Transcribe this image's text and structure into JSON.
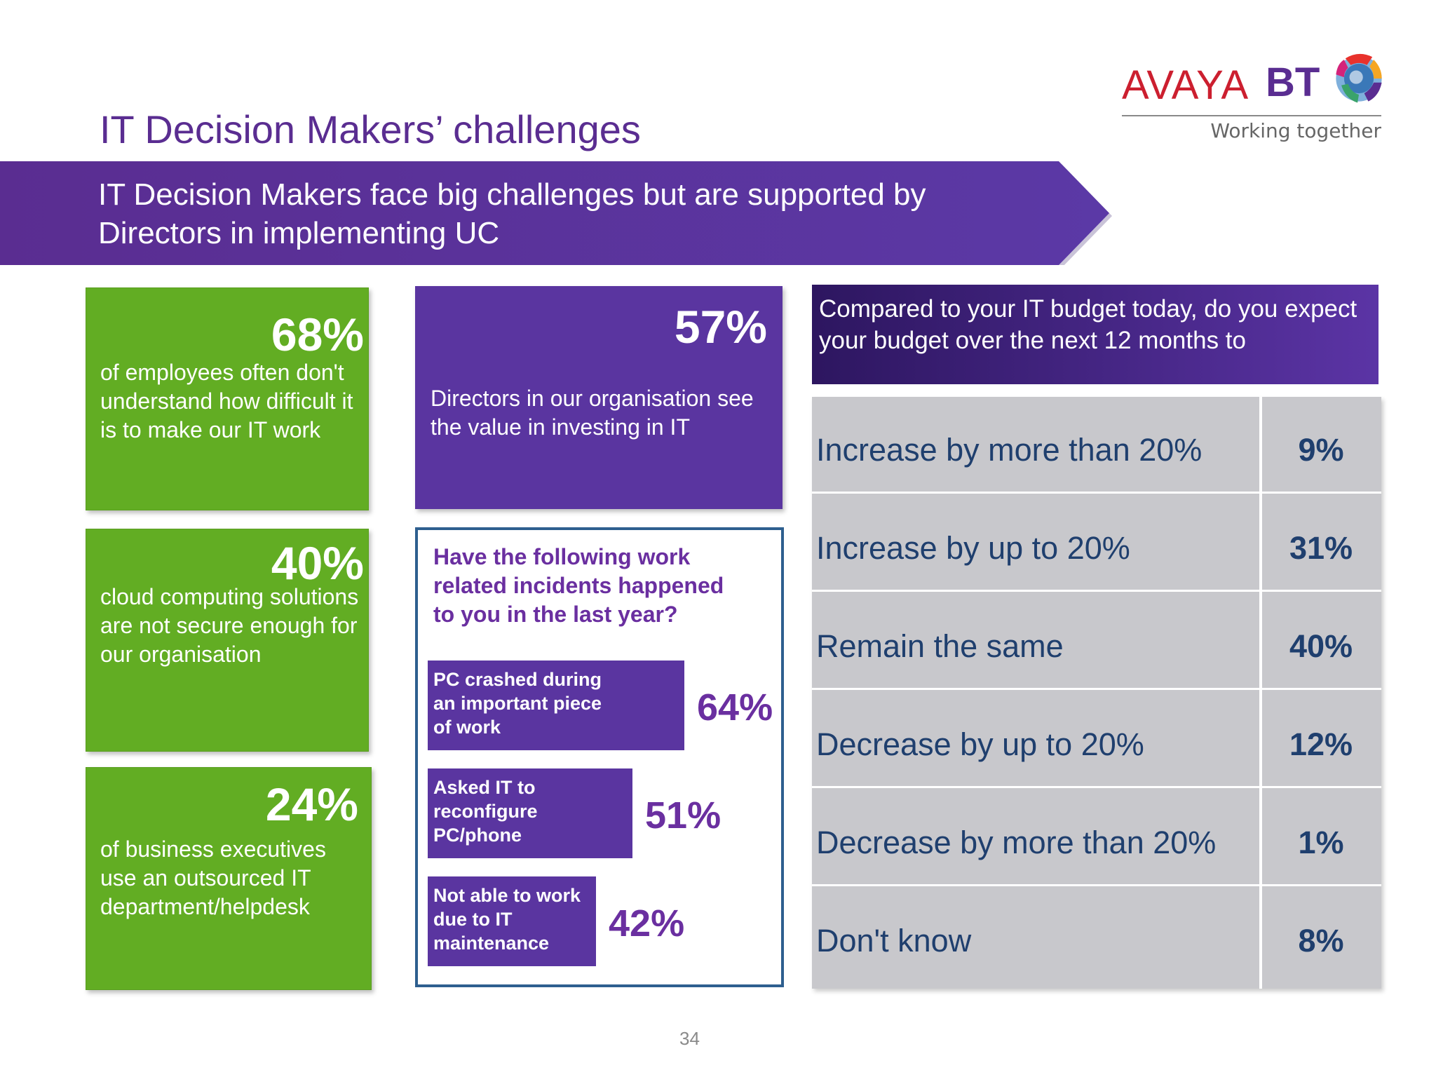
{
  "header": {
    "title": "IT Decision Makers’ challenges",
    "logo_avaya": "AVAYA",
    "logo_bt": "BT",
    "tagline": "Working together"
  },
  "banner": {
    "text": "IT Decision Makers face big challenges but are supported by Directors in implementing UC"
  },
  "stats": [
    {
      "pct": "68%",
      "desc": "of employees often don't understand how difficult it is to make our IT work"
    },
    {
      "pct": "40%",
      "desc": "cloud computing solutions are not secure enough for our organisation"
    },
    {
      "pct": "24%",
      "desc": "of business executives use an outsourced IT department/helpdesk"
    }
  ],
  "directors": {
    "pct": "57%",
    "desc": "Directors in our organisation see the value in investing in IT"
  },
  "incidents": {
    "question": "Have the following work related incidents happened to you in the last year?",
    "items": [
      {
        "label": "PC crashed during an important piece of work",
        "pct": "64%",
        "value": 64
      },
      {
        "label": "Asked IT to reconfigure PC/phone",
        "pct": "51%",
        "value": 51
      },
      {
        "label": "Not able to work due to IT maintenance",
        "pct": "42%",
        "value": 42
      }
    ]
  },
  "budget": {
    "question": "Compared to your IT budget today, do you expect your budget over the next 12 months to",
    "rows": [
      {
        "label": "Increase by more than 20%",
        "value": "9%"
      },
      {
        "label": "Increase by up to 20%",
        "value": "31%"
      },
      {
        "label": "Remain the same",
        "value": "40%"
      },
      {
        "label": "Decrease by up to 20%",
        "value": "12%"
      },
      {
        "label": "Decrease by more than 20%",
        "value": "1%"
      },
      {
        "label": "Don't know",
        "value": "8%"
      }
    ]
  },
  "footer": {
    "page_number": "34"
  }
}
